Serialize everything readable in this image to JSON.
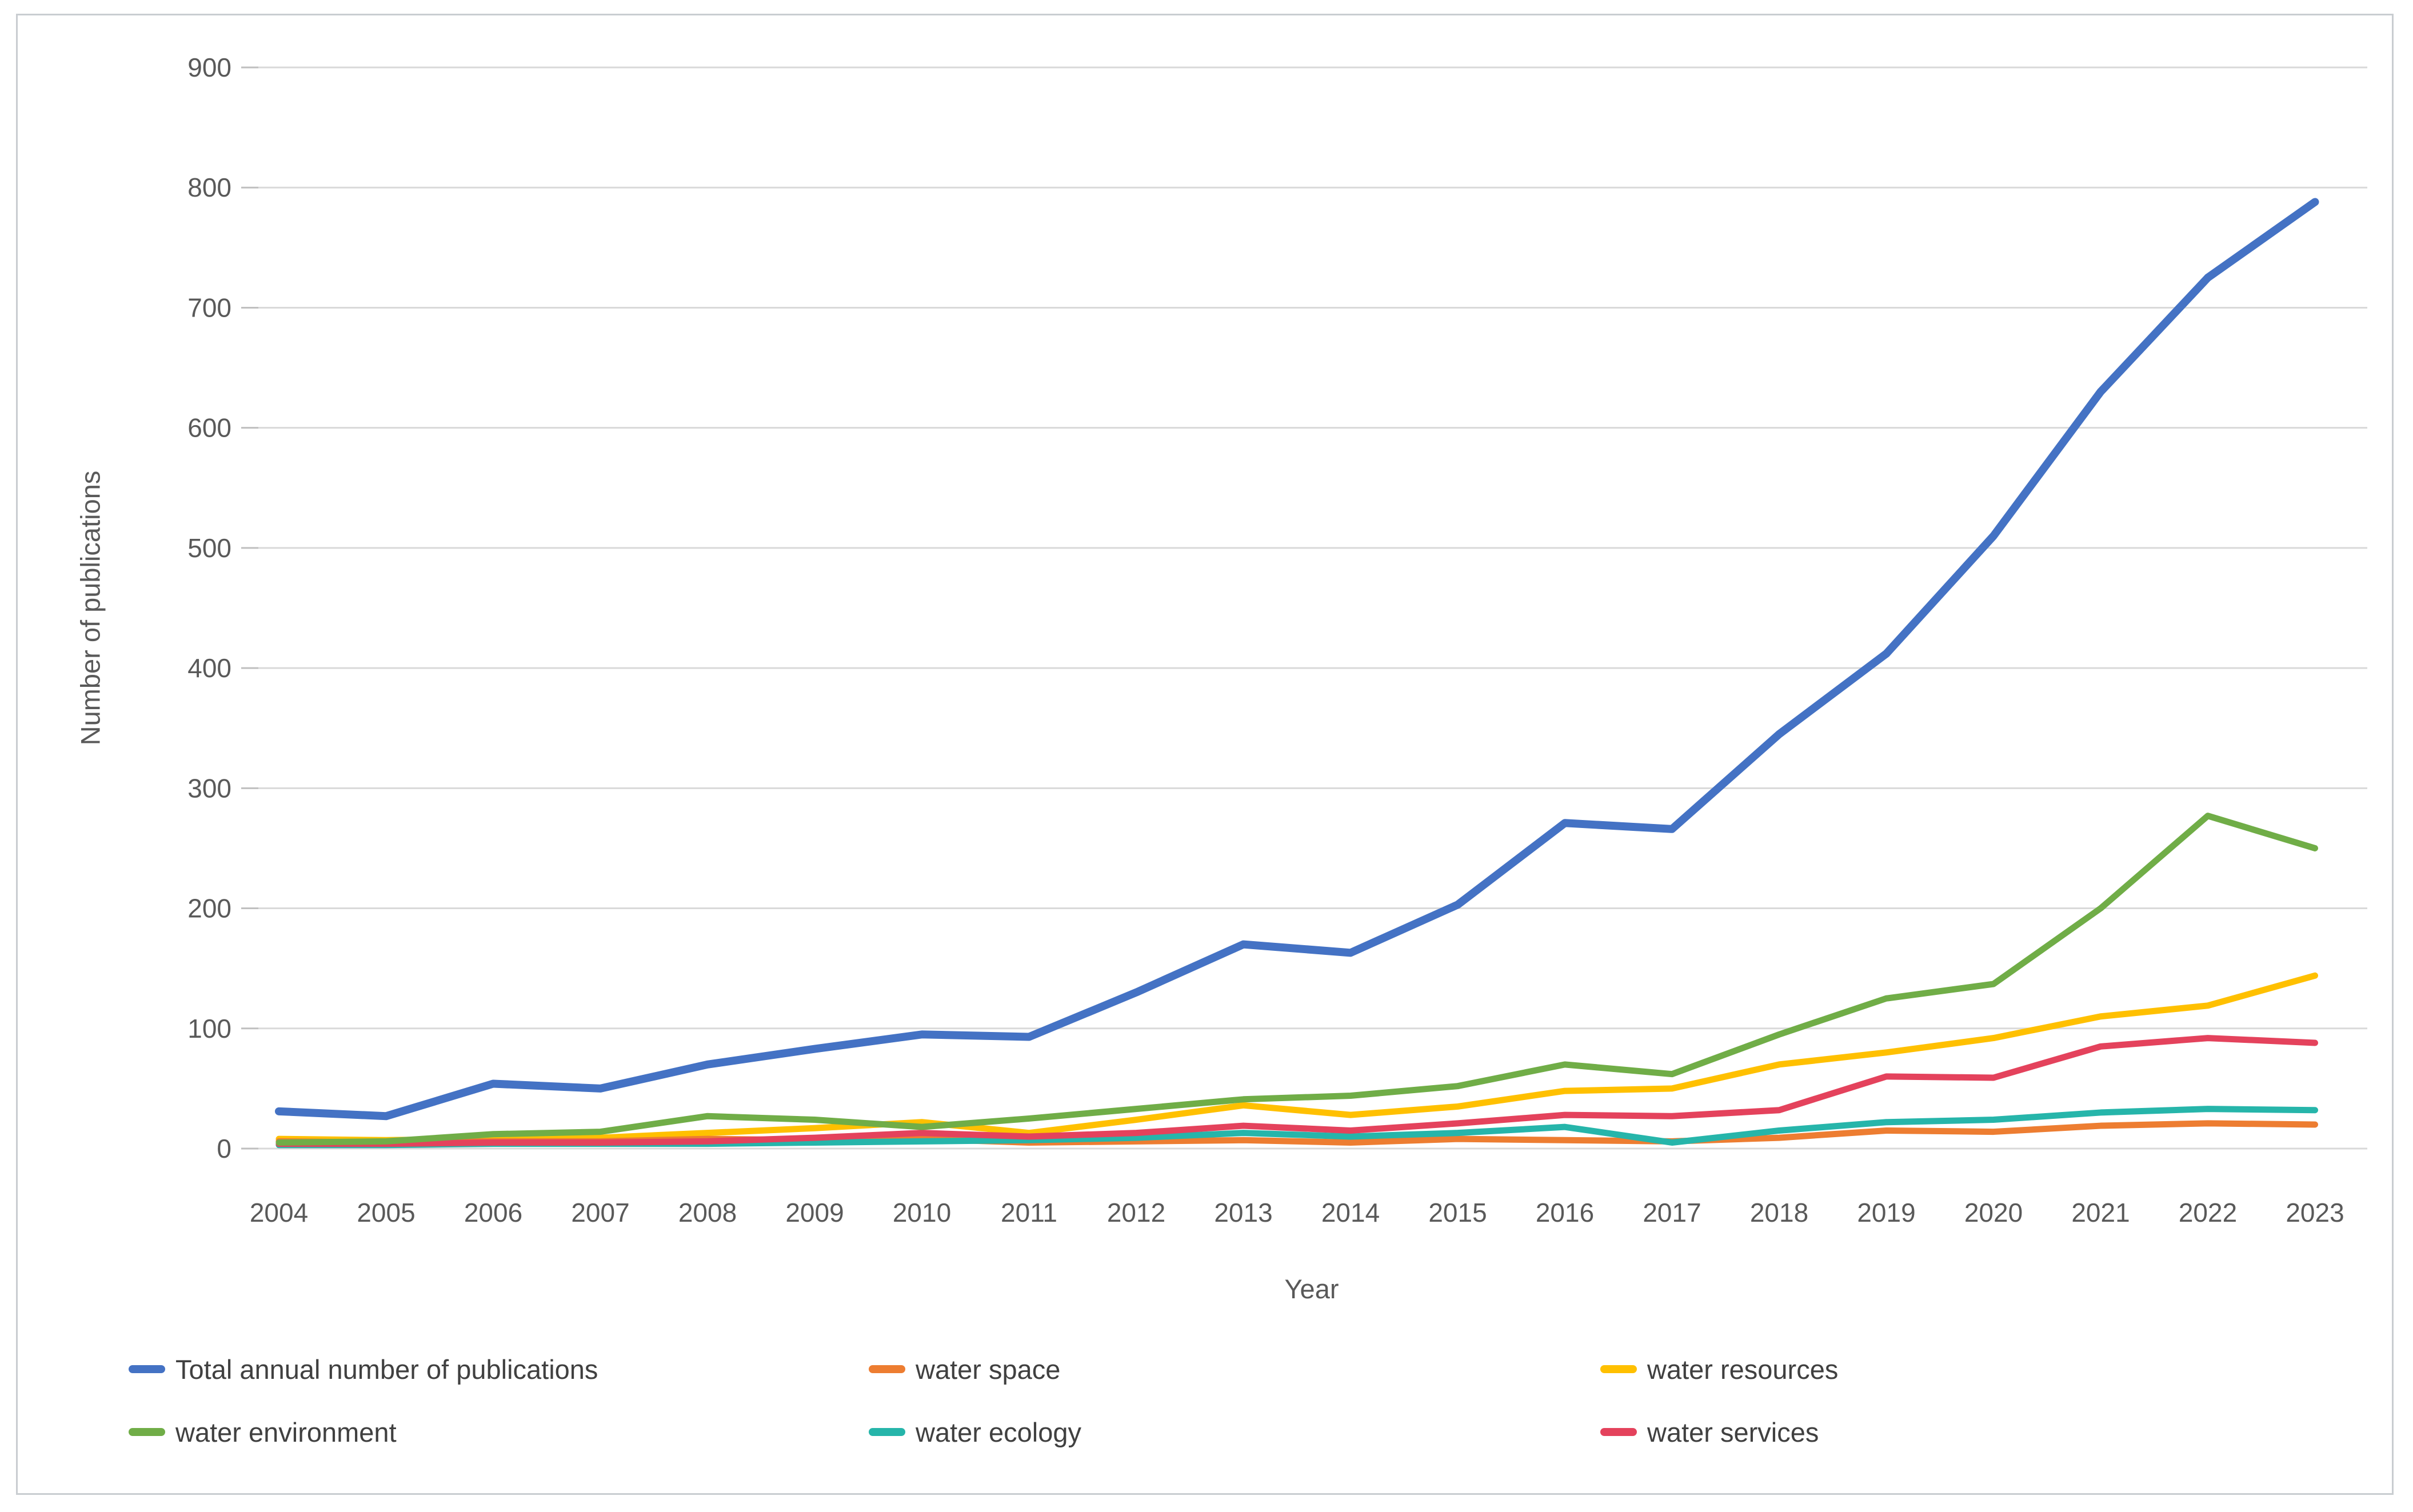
{
  "chart_data": {
    "type": "line",
    "title": "",
    "xlabel": "Year",
    "ylabel": "Number of publications",
    "x": [
      2004,
      2005,
      2006,
      2007,
      2008,
      2009,
      2010,
      2011,
      2012,
      2013,
      2014,
      2015,
      2016,
      2017,
      2018,
      2019,
      2020,
      2021,
      2022,
      2023
    ],
    "ylim": [
      0,
      900
    ],
    "ytick_step": 100,
    "grid": true,
    "legend_position": "bottom",
    "series": [
      {
        "name": "Total annual number of publications",
        "color": "#4472C4",
        "values": [
          31,
          27,
          54,
          50,
          70,
          83,
          95,
          93,
          130,
          170,
          163,
          203,
          271,
          266,
          345,
          412,
          510,
          630,
          725,
          788
        ]
      },
      {
        "name": "water space",
        "color": "#ED7D31",
        "values": [
          6,
          5,
          6,
          6,
          8,
          7,
          8,
          5,
          6,
          7,
          5,
          8,
          7,
          6,
          9,
          15,
          14,
          19,
          21,
          20
        ]
      },
      {
        "name": "water resources",
        "color": "#FFC000",
        "values": [
          8,
          7,
          8,
          9,
          13,
          17,
          22,
          13,
          24,
          36,
          28,
          35,
          48,
          50,
          70,
          80,
          92,
          110,
          119,
          144
        ]
      },
      {
        "name": "water environment",
        "color": "#70AD47",
        "values": [
          5,
          6,
          12,
          14,
          27,
          24,
          18,
          25,
          33,
          41,
          44,
          52,
          70,
          62,
          95,
          125,
          137,
          200,
          277,
          250
        ]
      },
      {
        "name": "water ecology",
        "color": "#26B5AA",
        "values": [
          3,
          3,
          4,
          4,
          4,
          5,
          6,
          7,
          9,
          13,
          10,
          13,
          18,
          5,
          15,
          22,
          24,
          30,
          33,
          32
        ]
      },
      {
        "name": "water services",
        "color": "#E4425C",
        "values": [
          4,
          4,
          5,
          5,
          6,
          9,
          13,
          10,
          13,
          19,
          15,
          21,
          28,
          27,
          32,
          60,
          59,
          85,
          92,
          88
        ]
      }
    ],
    "legend_columns": [
      [
        0,
        3
      ],
      [
        1,
        4
      ],
      [
        2,
        5
      ]
    ]
  },
  "styles": {
    "gridline_color": "#D9D9D9",
    "tick_color": "#BFBFBF",
    "axis_text_color": "#595959",
    "legend_text_color": "#404040"
  }
}
